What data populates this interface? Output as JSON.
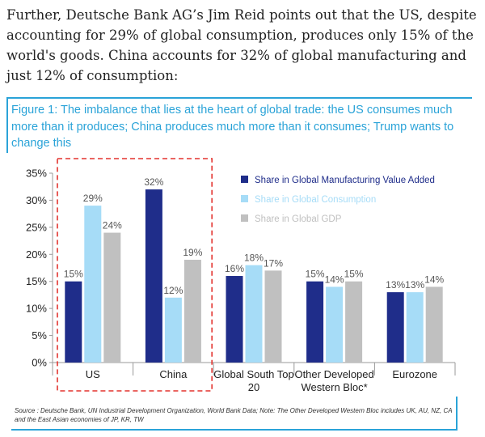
{
  "article": {
    "intro": "Further, Deutsche Bank AG’s Jim Reid points out that the US, despite accounting for 29% of global consumption, produces only 15% of the world's goods. China accounts for 32% of global manufacturing and just 12% of consumption:"
  },
  "figure": {
    "title": "Figure 1: The imbalance that lies at the heart of global trade: the US consumes much more than it produces; China produces much more than it consumes; Trump wants to change this",
    "source": "Source : Deutsche Bank, UN Industrial Development Organization, World Bank Data; Note: The Other Developed Western Bloc includes UK, AU, NZ, CA and the East Asian economies of JP, KR, TW"
  },
  "chart_data": {
    "type": "bar",
    "categories": [
      [
        "US"
      ],
      [
        "China"
      ],
      [
        "Global South Top",
        "20"
      ],
      [
        "Other Developed",
        "Western Bloc*"
      ],
      [
        "Eurozone"
      ]
    ],
    "series": [
      {
        "name": "Share in Global Manufacturing Value Added",
        "values": [
          15,
          32,
          16,
          15,
          13
        ],
        "labels": [
          "15%",
          "32%",
          "16%",
          "15%",
          "13%"
        ],
        "color": "#1f2d8a"
      },
      {
        "name": "Share in Global Consumption",
        "values": [
          29,
          12,
          18,
          14,
          13
        ],
        "labels": [
          "29%",
          "12%",
          "18%",
          "14%",
          "13%"
        ],
        "color": "#a6dcf7"
      },
      {
        "name": "Share in Global GDP",
        "values": [
          24,
          19,
          17,
          15,
          14
        ],
        "labels": [
          "24%",
          "19%",
          "17%",
          "15%",
          "14%"
        ],
        "color": "#c0c0c0"
      }
    ],
    "ylim": [
      0,
      35
    ],
    "yticks": [
      "0%",
      "5%",
      "10%",
      "15%",
      "20%",
      "25%",
      "30%",
      "35%"
    ],
    "highlighted_categories": [
      "US",
      "China"
    ],
    "highlight_color": "#e3342f",
    "legend_position": "top-right",
    "label_color": "#555555"
  }
}
